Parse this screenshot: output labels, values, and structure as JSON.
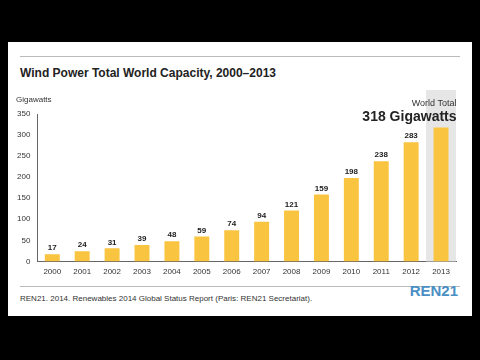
{
  "chart_data": {
    "type": "bar",
    "title": "Wind Power Total World Capacity, 2000–2013",
    "y_label": "Gigawatts",
    "categories": [
      "2000",
      "2001",
      "2002",
      "2003",
      "2004",
      "2005",
      "2006",
      "2007",
      "2008",
      "2009",
      "2010",
      "2011",
      "2012",
      "2013"
    ],
    "values": [
      17,
      24,
      31,
      39,
      48,
      59,
      74,
      94,
      121,
      159,
      198,
      238,
      283,
      318
    ],
    "value_labels": [
      "17",
      "24",
      "31",
      "39",
      "48",
      "59",
      "74",
      "94",
      "121",
      "159",
      "198",
      "238",
      "283",
      "318 Gigawatts"
    ],
    "annotations": [
      "World Total"
    ],
    "color": "#f9c440",
    "ylim": [
      0,
      350
    ],
    "yticks": [
      0,
      50,
      100,
      150,
      200,
      250,
      300,
      350
    ],
    "grid": false,
    "data_labels": true
  },
  "source": "REN21. 2014. Renewables 2014 Global Status Report (Paris: REN21 Secretariat).",
  "logo": "REN21"
}
